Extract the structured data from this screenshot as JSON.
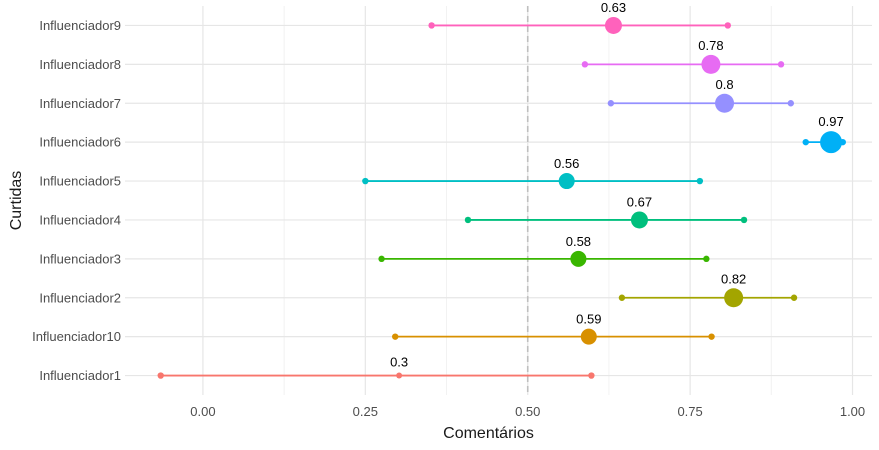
{
  "chart_data": {
    "type": "scatter",
    "xlabel": "Comentários",
    "ylabel": "Curtidas",
    "xlim": [
      -0.12,
      1.03
    ],
    "x_ticks": [
      0,
      0.25,
      0.5,
      0.75,
      1
    ],
    "x_tick_labels": [
      "0.00",
      "0.25",
      "0.50",
      "0.75",
      "1.00"
    ],
    "reference_line": 0.5,
    "grid": true,
    "legend": "none",
    "categories": [
      "Influenciador1",
      "Influenciador10",
      "Influenciador2",
      "Influenciador3",
      "Influenciador4",
      "Influenciador5",
      "Influenciador6",
      "Influenciador7",
      "Influenciador8",
      "Influenciador9"
    ],
    "points": [
      {
        "category": "Influenciador1",
        "low": -0.065,
        "high": 0.598,
        "value": 0.302,
        "label": "0.3",
        "color": "#F8766D"
      },
      {
        "category": "Influenciador10",
        "low": 0.296,
        "high": 0.783,
        "value": 0.594,
        "label": "0.59",
        "color": "#D89000"
      },
      {
        "category": "Influenciador2",
        "low": 0.645,
        "high": 0.91,
        "value": 0.817,
        "label": "0.82",
        "color": "#A3A500"
      },
      {
        "category": "Influenciador3",
        "low": 0.275,
        "high": 0.775,
        "value": 0.578,
        "label": "0.58",
        "color": "#39B600"
      },
      {
        "category": "Influenciador4",
        "low": 0.408,
        "high": 0.833,
        "value": 0.672,
        "label": "0.67",
        "color": "#00BF7D"
      },
      {
        "category": "Influenciador5",
        "low": 0.25,
        "high": 0.765,
        "value": 0.56,
        "label": "0.56",
        "color": "#00BFC4"
      },
      {
        "category": "Influenciador6",
        "low": 0.928,
        "high": 0.985,
        "value": 0.967,
        "label": "0.97",
        "color": "#00B0F6"
      },
      {
        "category": "Influenciador7",
        "low": 0.628,
        "high": 0.905,
        "value": 0.803,
        "label": "0.8",
        "color": "#9590FF"
      },
      {
        "category": "Influenciador8",
        "low": 0.588,
        "high": 0.89,
        "value": 0.782,
        "label": "0.78",
        "color": "#E76BF3"
      },
      {
        "category": "Influenciador9",
        "low": 0.352,
        "high": 0.808,
        "value": 0.632,
        "label": "0.63",
        "color": "#FF62BC"
      }
    ],
    "point_sizes": {
      "Influenciador1": 3,
      "Influenciador10": 8,
      "Influenciador2": 9.5,
      "Influenciador3": 8,
      "Influenciador4": 8.5,
      "Influenciador5": 8,
      "Influenciador6": 11,
      "Influenciador7": 9.5,
      "Influenciador8": 9.5,
      "Influenciador9": 8.5
    }
  }
}
